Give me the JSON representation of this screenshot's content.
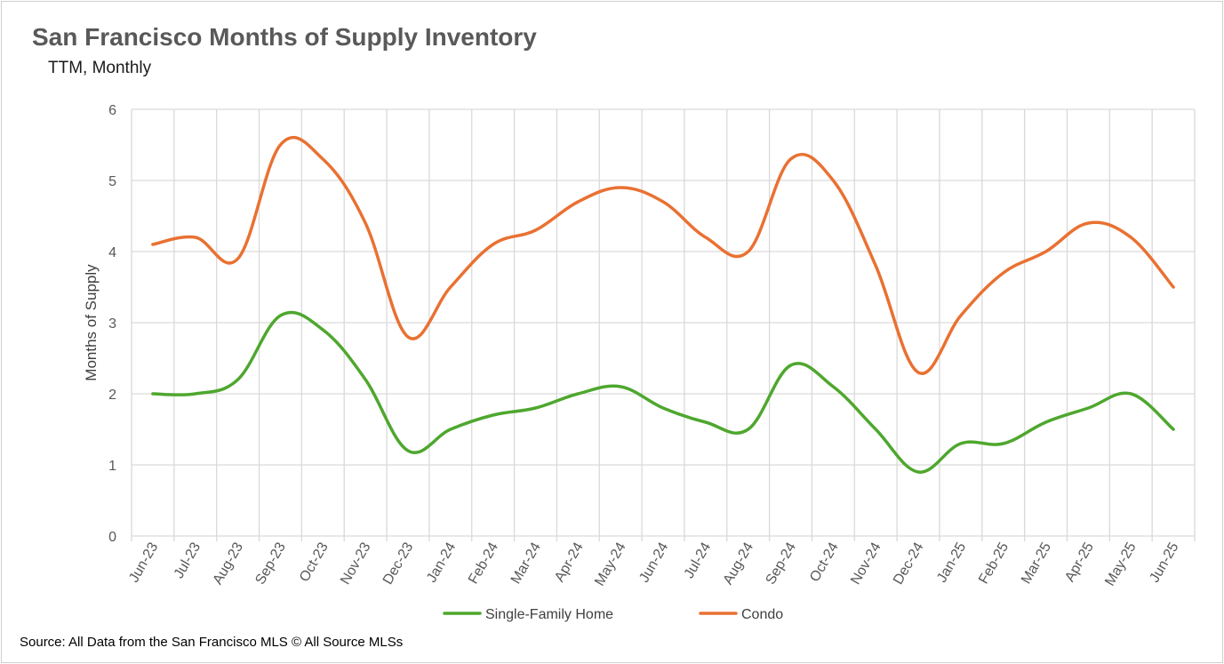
{
  "title": "San Francisco  Months of Supply Inventory",
  "subtitle": "TTM, Monthly",
  "source": "Source: All Data from the San Francisco MLS © All Source MLSs",
  "chart_data": {
    "type": "line",
    "title": "San Francisco  Months of Supply Inventory",
    "subtitle": "TTM, Monthly",
    "xlabel": "",
    "ylabel": "Months of Supply",
    "ylim": [
      0,
      6
    ],
    "yticks": [
      0,
      1,
      2,
      3,
      4,
      5,
      6
    ],
    "grid": true,
    "legend": "bottom",
    "categories": [
      "Jun-23",
      "Jul-23",
      "Aug-23",
      "Sep-23",
      "Oct-23",
      "Nov-23",
      "Dec-23",
      "Jan-24",
      "Feb-24",
      "Mar-24",
      "Apr-24",
      "May-24",
      "Jun-24",
      "Jul-24",
      "Aug-24",
      "Sep-24",
      "Oct-24",
      "Nov-24",
      "Dec-24",
      "Jan-25",
      "Feb-25",
      "Mar-25",
      "Apr-25",
      "May-25",
      "Jun-25"
    ],
    "series": [
      {
        "name": "Single-Family Home",
        "color": "#4ea72e",
        "values": [
          2.0,
          2.0,
          2.2,
          3.1,
          2.9,
          2.2,
          1.2,
          1.5,
          1.7,
          1.8,
          2.0,
          2.1,
          1.8,
          1.6,
          1.5,
          2.4,
          2.1,
          1.5,
          0.9,
          1.3,
          1.3,
          1.6,
          1.8,
          2.0,
          1.5
        ]
      },
      {
        "name": "Condo",
        "color": "#e97132",
        "values": [
          4.1,
          4.2,
          3.9,
          5.5,
          5.3,
          4.4,
          2.8,
          3.5,
          4.1,
          4.3,
          4.7,
          4.9,
          4.7,
          4.2,
          4.0,
          5.3,
          5.0,
          3.8,
          2.3,
          3.1,
          3.7,
          4.0,
          4.4,
          4.2,
          3.5
        ]
      }
    ]
  }
}
